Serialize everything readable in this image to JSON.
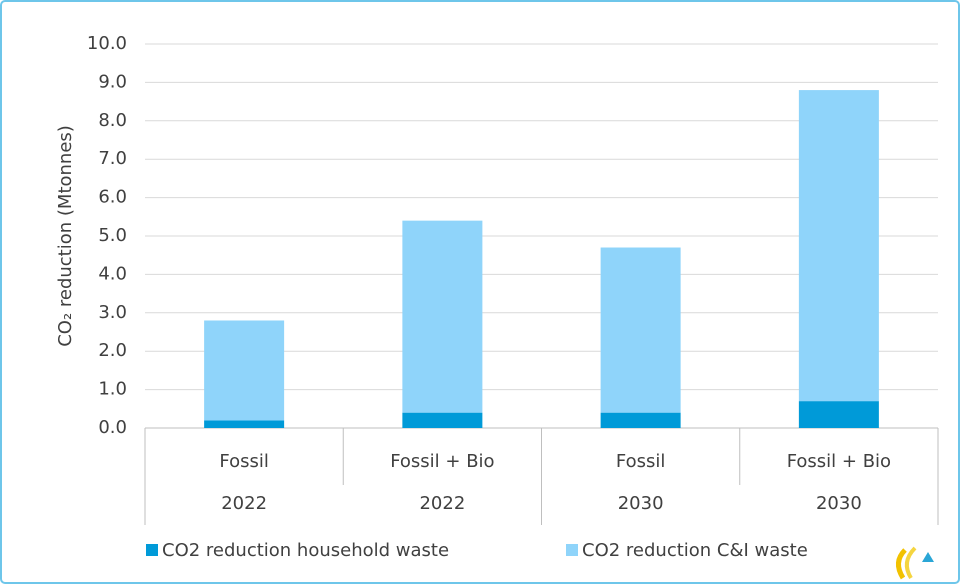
{
  "chart_data": {
    "type": "stacked_bar",
    "y_label": "CO₂ reduction (Mtonnes)",
    "categories": [
      "Fossil",
      "Fossil + Bio",
      "Fossil",
      "Fossil + Bio"
    ],
    "category_groups": [
      "2022",
      "2022",
      "2030",
      "2030"
    ],
    "series": [
      {
        "name": "CO2 reduction household waste",
        "color": "#009ad8",
        "values": [
          0.2,
          0.4,
          0.4,
          0.7
        ]
      },
      {
        "name": "CO2 reduction C&I waste",
        "color": "#8fd4fa",
        "values": [
          2.6,
          5.0,
          4.3,
          8.1
        ]
      }
    ],
    "ylim": [
      0,
      10
    ],
    "yticks": [
      {
        "value": 0,
        "label": "0.0"
      },
      {
        "value": 1,
        "label": "1.0"
      },
      {
        "value": 2,
        "label": "2.0"
      },
      {
        "value": 3,
        "label": "3.0"
      },
      {
        "value": 4,
        "label": "4.0"
      },
      {
        "value": 5,
        "label": "5.0"
      },
      {
        "value": 6,
        "label": "6.0"
      },
      {
        "value": 7,
        "label": "7.0"
      },
      {
        "value": 8,
        "label": "8.0"
      },
      {
        "value": 9,
        "label": "9.0"
      },
      {
        "value": 10,
        "label": "10.0"
      }
    ],
    "grid": true,
    "legend": "bottom"
  }
}
